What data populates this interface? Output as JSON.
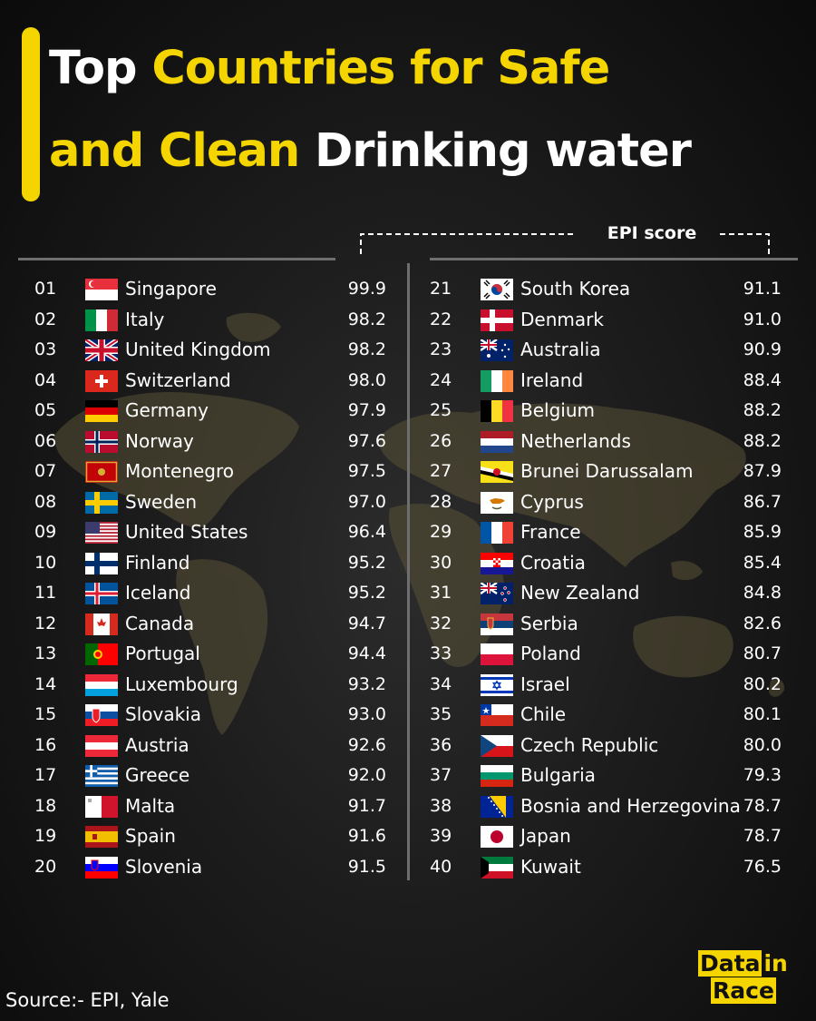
{
  "title": {
    "part1": "Top ",
    "part2": "Countries for Safe",
    "part3": "and Clean ",
    "part4": "Drinking water"
  },
  "header": {
    "epi_label": "EPI score"
  },
  "colors": {
    "accent": "#f5d500",
    "background": "#111111",
    "map": "#5a5236"
  },
  "rankings": [
    {
      "rank": "01",
      "country": "Singapore",
      "score": "99.9",
      "flag": "singapore"
    },
    {
      "rank": "02",
      "country": "Italy",
      "score": "98.2",
      "flag": "italy"
    },
    {
      "rank": "03",
      "country": "United Kingdom",
      "score": "98.2",
      "flag": "united-kingdom"
    },
    {
      "rank": "04",
      "country": "Switzerland",
      "score": "98.0",
      "flag": "switzerland"
    },
    {
      "rank": "05",
      "country": "Germany",
      "score": "97.9",
      "flag": "germany"
    },
    {
      "rank": "06",
      "country": "Norway",
      "score": "97.6",
      "flag": "norway"
    },
    {
      "rank": "07",
      "country": "Montenegro",
      "score": "97.5",
      "flag": "montenegro"
    },
    {
      "rank": "08",
      "country": "Sweden",
      "score": "97.0",
      "flag": "sweden"
    },
    {
      "rank": "09",
      "country": "United States",
      "score": "96.4",
      "flag": "united-states"
    },
    {
      "rank": "10",
      "country": "Finland",
      "score": "95.2",
      "flag": "finland"
    },
    {
      "rank": "11",
      "country": "Iceland",
      "score": "95.2",
      "flag": "iceland"
    },
    {
      "rank": "12",
      "country": "Canada",
      "score": "94.7",
      "flag": "canada"
    },
    {
      "rank": "13",
      "country": "Portugal",
      "score": "94.4",
      "flag": "portugal"
    },
    {
      "rank": "14",
      "country": "Luxembourg",
      "score": "93.2",
      "flag": "luxembourg"
    },
    {
      "rank": "15",
      "country": "Slovakia",
      "score": "93.0",
      "flag": "slovakia"
    },
    {
      "rank": "16",
      "country": "Austria",
      "score": "92.6",
      "flag": "austria"
    },
    {
      "rank": "17",
      "country": "Greece",
      "score": "92.0",
      "flag": "greece"
    },
    {
      "rank": "18",
      "country": "Malta",
      "score": "91.7",
      "flag": "malta"
    },
    {
      "rank": "19",
      "country": "Spain",
      "score": "91.6",
      "flag": "spain"
    },
    {
      "rank": "20",
      "country": "Slovenia",
      "score": "91.5",
      "flag": "slovenia"
    },
    {
      "rank": "21",
      "country": "South Korea",
      "score": "91.1",
      "flag": "south-korea"
    },
    {
      "rank": "22",
      "country": "Denmark",
      "score": "91.0",
      "flag": "denmark"
    },
    {
      "rank": "23",
      "country": "Australia",
      "score": "90.9",
      "flag": "australia"
    },
    {
      "rank": "24",
      "country": "Ireland",
      "score": "88.4",
      "flag": "ireland"
    },
    {
      "rank": "25",
      "country": "Belgium",
      "score": "88.2",
      "flag": "belgium"
    },
    {
      "rank": "26",
      "country": "Netherlands",
      "score": "88.2",
      "flag": "netherlands"
    },
    {
      "rank": "27",
      "country": "Brunei Darussalam",
      "score": "87.9",
      "flag": "brunei"
    },
    {
      "rank": "28",
      "country": "Cyprus",
      "score": "86.7",
      "flag": "cyprus"
    },
    {
      "rank": "29",
      "country": "France",
      "score": "85.9",
      "flag": "france"
    },
    {
      "rank": "30",
      "country": "Croatia",
      "score": "85.4",
      "flag": "croatia"
    },
    {
      "rank": "31",
      "country": "New Zealand",
      "score": "84.8",
      "flag": "new-zealand"
    },
    {
      "rank": "32",
      "country": "Serbia",
      "score": "82.6",
      "flag": "serbia"
    },
    {
      "rank": "33",
      "country": "Poland",
      "score": "80.7",
      "flag": "poland"
    },
    {
      "rank": "34",
      "country": "Israel",
      "score": "80.2",
      "flag": "israel"
    },
    {
      "rank": "35",
      "country": "Chile",
      "score": "80.1",
      "flag": "chile"
    },
    {
      "rank": "36",
      "country": "Czech Republic",
      "score": "80.0",
      "flag": "czech-republic"
    },
    {
      "rank": "37",
      "country": "Bulgaria",
      "score": "79.3",
      "flag": "bulgaria"
    },
    {
      "rank": "38",
      "country": "Bosnia and Herzegovina",
      "score": "78.7",
      "flag": "bosnia"
    },
    {
      "rank": "39",
      "country": "Japan",
      "score": "78.7",
      "flag": "japan"
    },
    {
      "rank": "40",
      "country": "Kuwait",
      "score": "76.5",
      "flag": "kuwait"
    }
  ],
  "footer": {
    "source": "Source:-  EPI, Yale",
    "logo_line1_a": "Data",
    "logo_line1_b": "in",
    "logo_line2": "Race"
  }
}
